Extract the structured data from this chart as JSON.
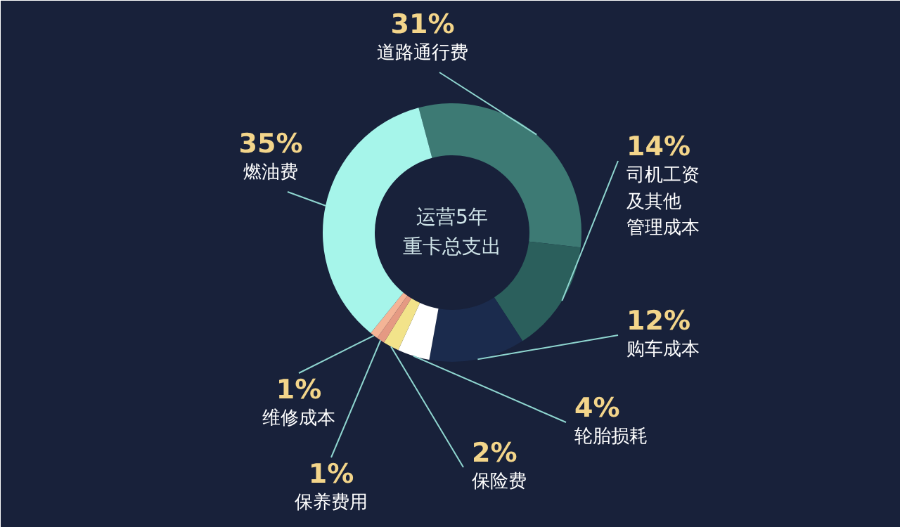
{
  "chart_data": {
    "type": "donut",
    "title": "运营5年重卡总支出",
    "categories": [
      "道路通行费",
      "司机工资及其他管理成本",
      "购车成本",
      "轮胎损耗",
      "保险费",
      "保养费用",
      "维修成本",
      "燃油费"
    ],
    "values": [
      31,
      14,
      12,
      4,
      2,
      1,
      1,
      35
    ],
    "colors": [
      "#3d7a74",
      "#2b5f5c",
      "#1b2b4d",
      "#ffffff",
      "#f2e38a",
      "#e59a83",
      "#f4b496",
      "#a6f5ea"
    ],
    "value_labels": [
      "31%",
      "14%",
      "12%",
      "4%",
      "2%",
      "1%",
      "1%",
      "35%"
    ]
  }
}
